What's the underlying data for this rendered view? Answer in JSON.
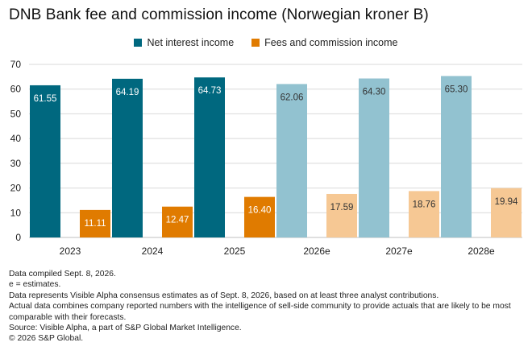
{
  "title": "DNB Bank fee and commission income (Norwegian kroner B)",
  "chart_data": {
    "type": "bar",
    "title": "DNB Bank fee and commission income (Norwegian kroner B)",
    "categories": [
      "2023",
      "2024",
      "2025",
      "2026e",
      "2027e",
      "2028e"
    ],
    "series": [
      {
        "name": "Net interest income",
        "values": [
          61.55,
          64.19,
          64.73,
          62.06,
          64.3,
          65.3
        ],
        "labels": [
          "61.55",
          "64.19",
          "64.73",
          "62.06",
          "64.30",
          "65.30"
        ],
        "colors": [
          "#00687f",
          "#00687f",
          "#00687f",
          "#92c2d0",
          "#92c2d0",
          "#92c2d0"
        ]
      },
      {
        "name": "Fees and commission income",
        "values": [
          11.11,
          12.47,
          16.4,
          17.59,
          18.76,
          19.94
        ],
        "labels": [
          "11.11",
          "12.47",
          "16.40",
          "17.59",
          "18.76",
          "19.94"
        ],
        "colors": [
          "#e07b00",
          "#e07b00",
          "#e07b00",
          "#f6c894",
          "#f6c894",
          "#f6c894"
        ]
      }
    ],
    "yticks": [
      "0",
      "10",
      "20",
      "30",
      "40",
      "50",
      "60",
      "70"
    ],
    "ylim": [
      0,
      70
    ],
    "grid": true,
    "legend_position": "top-center"
  },
  "colors": {
    "net_interest": "#00687f",
    "fees": "#e07b00",
    "net_interest_estimate": "#92c2d0",
    "fees_estimate": "#f6c894",
    "gridline": "#d9d9d9"
  },
  "notes": [
    "Data compiled Sept. 8, 2026.",
    "e = estimates.",
    "Data represents Visible Alpha consensus estimates as of Sept. 8, 2026, based on at least three analyst contributions.",
    "Actual data combines company reported numbers with the intelligence of sell-side community to provide actuals that are likely to be most comparable with their forecasts.",
    "Source: Visible Alpha, a part of S&P Global Market Intelligence.",
    "© 2026 S&P Global."
  ]
}
